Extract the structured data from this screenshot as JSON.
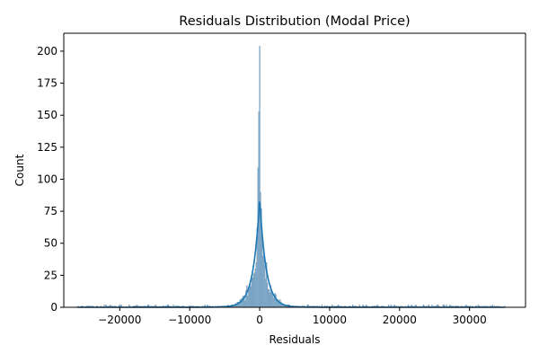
{
  "chart_data": {
    "type": "histogram",
    "title": "Residuals Distribution (Modal Price)",
    "xlabel": "Residuals",
    "ylabel": "Count",
    "xlim": [
      -28000,
      38000
    ],
    "ylim": [
      0,
      214
    ],
    "x_ticks": [
      -20000,
      -10000,
      0,
      10000,
      20000,
      30000
    ],
    "x_tick_labels": [
      "−20000",
      "−10000",
      "0",
      "10000",
      "20000",
      "30000"
    ],
    "y_ticks": [
      0,
      25,
      50,
      75,
      100,
      125,
      150,
      175,
      200
    ],
    "y_tick_labels": [
      "0",
      "25",
      "50",
      "75",
      "100",
      "125",
      "150",
      "175",
      "200"
    ],
    "data_range": [
      -26000,
      35000
    ],
    "bin_width": 122,
    "peaks": [
      {
        "x": 0,
        "count": 204
      },
      {
        "x": -120,
        "count": 153
      },
      {
        "x": -240,
        "count": 109
      },
      {
        "x": 120,
        "count": 90
      },
      {
        "x": 240,
        "count": 77
      },
      {
        "x": -360,
        "count": 62
      },
      {
        "x": 360,
        "count": 55
      }
    ],
    "kde_peak": 85,
    "kde_peak_x": 0,
    "bar_color": "#8fb3cf",
    "bar_edge_color": "#5f8fb4",
    "kde_color": "#1f77b4",
    "grid": false,
    "legend": "none"
  }
}
